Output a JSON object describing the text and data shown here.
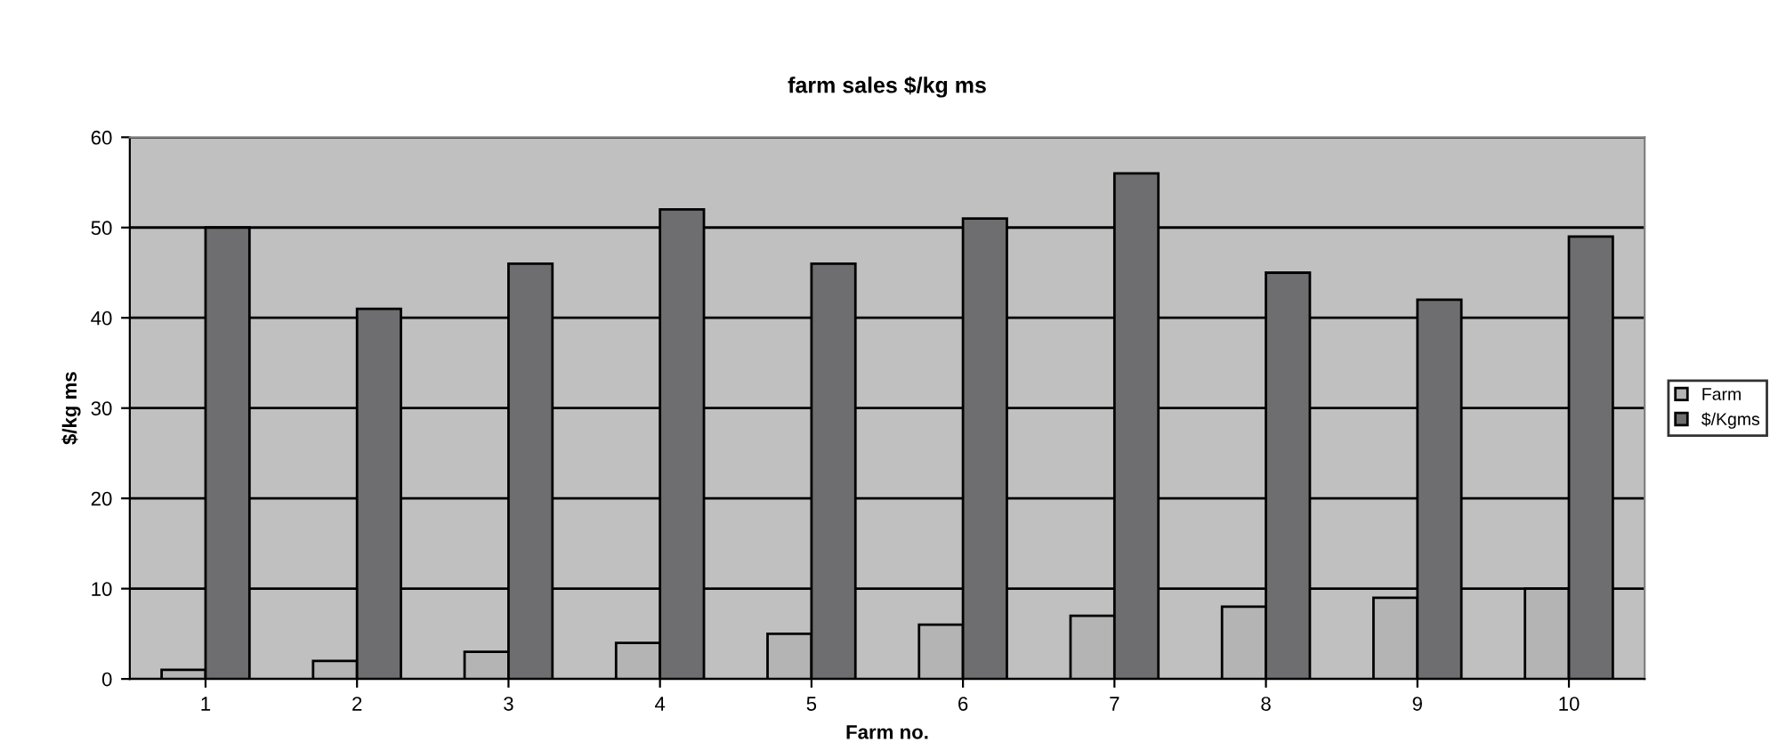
{
  "chart_data": {
    "type": "bar",
    "title": "farm sales $/kg ms",
    "xlabel": "Farm no.",
    "ylabel": "$/kg ms",
    "categories": [
      "1",
      "2",
      "3",
      "4",
      "5",
      "6",
      "7",
      "8",
      "9",
      "10"
    ],
    "series": [
      {
        "name": "Farm",
        "color": "#b4b4b4",
        "values": [
          1,
          2,
          3,
          4,
          5,
          6,
          7,
          8,
          9,
          10
        ]
      },
      {
        "name": "$/Kgms",
        "color": "#6e6e70",
        "values": [
          50,
          41,
          46,
          52,
          46,
          51,
          56,
          45,
          42,
          49
        ]
      }
    ],
    "ylim": [
      0,
      60
    ],
    "yticks": [
      0,
      10,
      20,
      30,
      40,
      50,
      60
    ],
    "grid": "y",
    "legend": "right"
  }
}
